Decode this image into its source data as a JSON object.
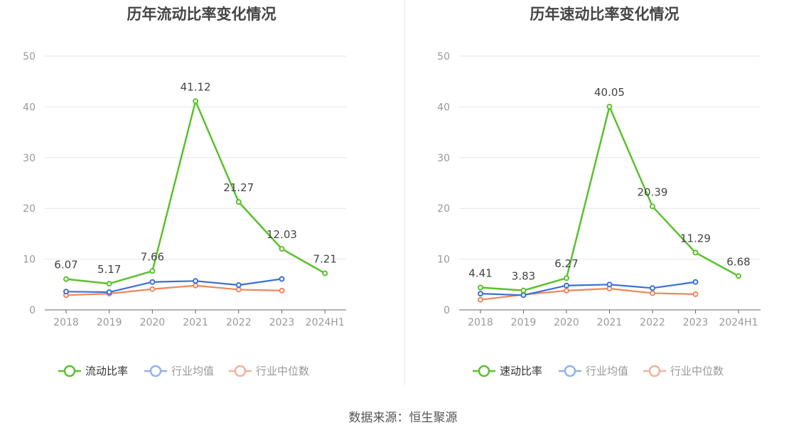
{
  "chart_data": [
    {
      "type": "line",
      "title": "历年流动比率变化情况",
      "categories": [
        "2018",
        "2019",
        "2020",
        "2021",
        "2022",
        "2023",
        "2024H1"
      ],
      "ylim": [
        0,
        50
      ],
      "yticks": [
        0,
        10,
        20,
        30,
        40,
        50
      ],
      "grid": true,
      "legend_position": "bottom",
      "series": [
        {
          "name": "流动比率",
          "color": "#5ac12c",
          "values": [
            6.07,
            5.17,
            7.66,
            41.12,
            21.27,
            12.03,
            7.21
          ],
          "labels": [
            "6.07",
            "5.17",
            "7.66",
            "41.12",
            "21.27",
            "12.03",
            "7.21"
          ]
        },
        {
          "name": "行业均值",
          "color": "#3a6fd8",
          "values": [
            3.6,
            3.5,
            5.5,
            5.7,
            4.9,
            6.1,
            null
          ]
        },
        {
          "name": "行业中位数",
          "color": "#f0855a",
          "values": [
            2.9,
            3.2,
            4.1,
            4.8,
            4.0,
            3.8,
            null
          ]
        }
      ]
    },
    {
      "type": "line",
      "title": "历年速动比率变化情况",
      "categories": [
        "2018",
        "2019",
        "2020",
        "2021",
        "2022",
        "2023",
        "2024H1"
      ],
      "ylim": [
        0,
        50
      ],
      "yticks": [
        0,
        10,
        20,
        30,
        40,
        50
      ],
      "grid": true,
      "legend_position": "bottom",
      "series": [
        {
          "name": "速动比率",
          "color": "#5ac12c",
          "values": [
            4.41,
            3.83,
            6.27,
            40.05,
            20.39,
            11.29,
            6.68
          ],
          "labels": [
            "4.41",
            "3.83",
            "6.27",
            "40.05",
            "20.39",
            "11.29",
            "6.68"
          ]
        },
        {
          "name": "行业均值",
          "color": "#3a6fd8",
          "values": [
            3.2,
            2.9,
            4.8,
            5.0,
            4.3,
            5.5,
            null
          ]
        },
        {
          "name": "行业中位数",
          "color": "#f0855a",
          "values": [
            2.0,
            3.0,
            3.8,
            4.2,
            3.3,
            3.1,
            null
          ]
        }
      ]
    }
  ],
  "legend_colors": [
    "#5ac12c",
    "#8fb3ee",
    "#f5b09a"
  ],
  "source": "数据来源：恒生聚源"
}
